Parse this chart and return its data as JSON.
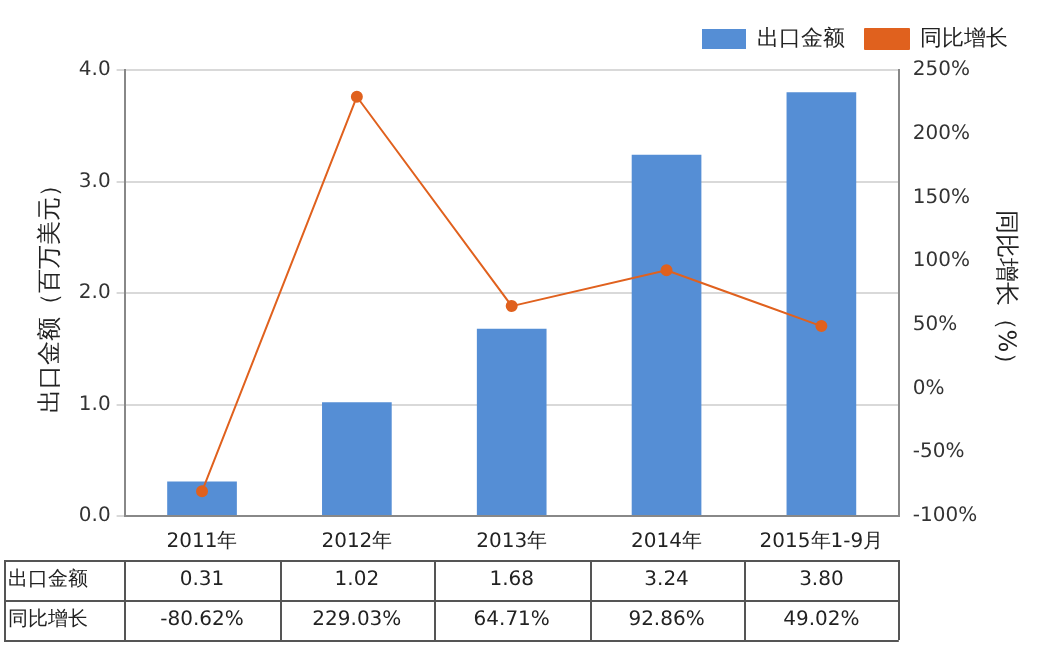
{
  "chart_data": {
    "type": "bar",
    "categories": [
      "2011年",
      "2012年",
      "2013年",
      "2014年",
      "2015年1-9月"
    ],
    "ylabel": "出口金额（百万美元）",
    "y2label": "同比增长（%）",
    "ylim": [
      0,
      4
    ],
    "yticks": [
      {
        "value": 0,
        "label": "0.0"
      },
      {
        "value": 1,
        "label": "1.0"
      },
      {
        "value": 2,
        "label": "2.0"
      },
      {
        "value": 3,
        "label": "3.0"
      },
      {
        "value": 4,
        "label": "4.0"
      }
    ],
    "y2lim": [
      -100,
      250
    ],
    "y2ticks": [
      {
        "value": -100,
        "label": "-100%"
      },
      {
        "value": -50,
        "label": "-50%"
      },
      {
        "value": 0,
        "label": "0%"
      },
      {
        "value": 50,
        "label": "50%"
      },
      {
        "value": 100,
        "label": "100%"
      },
      {
        "value": 150,
        "label": "150%"
      },
      {
        "value": 200,
        "label": "200%"
      },
      {
        "value": 250,
        "label": "250%"
      }
    ],
    "grid": "y",
    "legend": "top right",
    "marker": "circle",
    "series": [
      {
        "name": "出口金额",
        "color": "#558ed5",
        "values": [
          0.31,
          1.02,
          1.68,
          3.24,
          3.8
        ],
        "value_labels": [
          "0.31",
          "1.02",
          "1.68",
          "3.24",
          "3.80"
        ]
      },
      {
        "name": "同比增长",
        "type": "line",
        "axis": "y2",
        "color": "#e0611e",
        "values": [
          -80.62,
          229.03,
          64.71,
          92.86,
          49.02
        ],
        "value_labels": [
          "-80.62%",
          "229.03%",
          "64.71%",
          "92.86%",
          "49.02%"
        ]
      }
    ]
  }
}
